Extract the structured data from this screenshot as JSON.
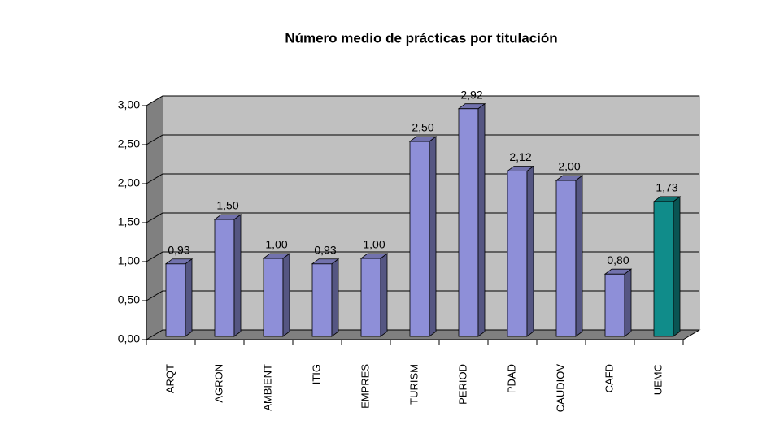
{
  "chart_data": {
    "type": "bar3d",
    "title": "Número medio de prácticas por titulación",
    "categories": [
      "ARQT",
      "AGRON",
      "AMBIENT",
      "ITIG",
      "EMPRES",
      "TURISM",
      "PERIOD",
      "PDAD",
      "CAUDIOV",
      "CAFD",
      "UEMC"
    ],
    "values": [
      0.93,
      1.5,
      1.0,
      0.93,
      1.0,
      2.5,
      2.92,
      2.12,
      2.0,
      0.8,
      1.73
    ],
    "value_labels": [
      "0,93",
      "1,50",
      "1,00",
      "0,93",
      "1,00",
      "2,50",
      "2,92",
      "2,12",
      "2,00",
      "0,80",
      "1,73"
    ],
    "colors": [
      "#8e8fd8",
      "#8e8fd8",
      "#8e8fd8",
      "#8e8fd8",
      "#8e8fd8",
      "#8e8fd8",
      "#8e8fd8",
      "#8e8fd8",
      "#8e8fd8",
      "#8e8fd8",
      "#108c8a"
    ],
    "ylim": [
      0,
      3
    ],
    "yticks": [
      {
        "value": 0,
        "label": "0,00"
      },
      {
        "value": 0.5,
        "label": "0,50"
      },
      {
        "value": 1,
        "label": "1,00"
      },
      {
        "value": 1.5,
        "label": "1,50"
      },
      {
        "value": 2,
        "label": "2,00"
      },
      {
        "value": 2.5,
        "label": "2,50"
      },
      {
        "value": 3,
        "label": "3,00"
      }
    ],
    "grid": true
  }
}
